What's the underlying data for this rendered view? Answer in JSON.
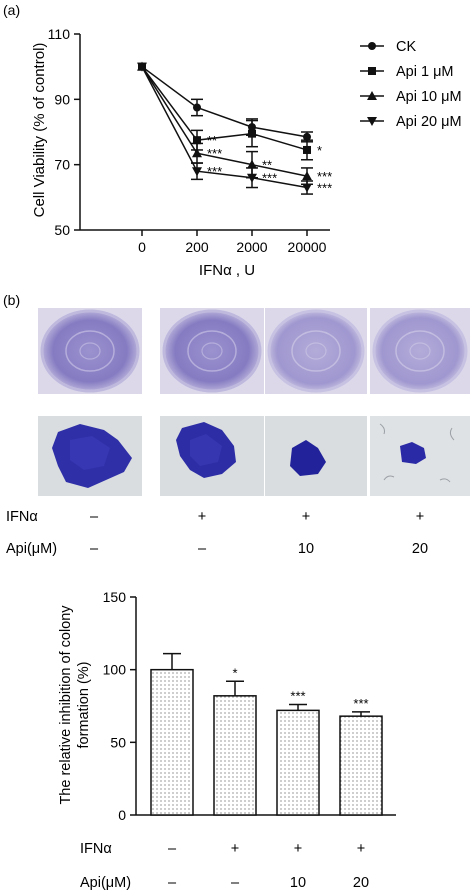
{
  "panels": {
    "a_label": "(a)",
    "b_label": "(b)"
  },
  "chart_data": [
    {
      "type": "line",
      "title": "",
      "xlabel": "IFNα , U",
      "ylabel": "Cell Viability (% of control)",
      "categories": [
        "0",
        "200",
        "2000",
        "20000"
      ],
      "ylim": [
        50,
        110
      ],
      "yticks": [
        "50",
        "70",
        "90",
        "110"
      ],
      "legend_position": "right",
      "series": [
        {
          "name": "CK",
          "marker": "circle",
          "values": [
            100,
            87.5,
            81.5,
            78.5
          ],
          "errors": [
            0,
            2.5,
            2.5,
            1.5
          ]
        },
        {
          "name": "Api 1 μM",
          "marker": "square",
          "values": [
            100,
            77.5,
            79.5,
            74.5
          ],
          "errors": [
            0,
            3,
            4,
            3
          ]
        },
        {
          "name": "Api 10 μM",
          "marker": "triangle-up",
          "values": [
            100,
            73.5,
            70,
            66.5
          ],
          "errors": [
            0,
            3,
            4,
            2.5
          ]
        },
        {
          "name": "Api 20 μM",
          "marker": "triangle-down",
          "values": [
            100,
            68,
            66,
            63
          ],
          "errors": [
            0,
            2.5,
            3,
            2
          ]
        }
      ],
      "annotations": [
        {
          "series": "Api 1 μM",
          "category": "200",
          "text": "**"
        },
        {
          "series": "Api 10 μM",
          "category": "200",
          "text": "***"
        },
        {
          "series": "Api 20 μM",
          "category": "200",
          "text": "***"
        },
        {
          "series": "Api 10 μM",
          "category": "2000",
          "text": "**"
        },
        {
          "series": "Api 20 μM",
          "category": "2000",
          "text": "***"
        },
        {
          "series": "Api 1 μM",
          "category": "20000",
          "text": "*"
        },
        {
          "series": "Api 10 μM",
          "category": "20000",
          "text": "***"
        },
        {
          "series": "Api 20 μM",
          "category": "20000",
          "text": "***"
        }
      ]
    },
    {
      "type": "bar",
      "title": "",
      "xlabel": "",
      "ylabel": "The relative inhibition of colony formation (%)",
      "ylabel_lines": [
        "The relative inhibition of colony",
        "formation (%)"
      ],
      "ylim": [
        0,
        150
      ],
      "yticks": [
        "0",
        "50",
        "100",
        "150"
      ],
      "categories": [
        "– / –",
        "+ / –",
        "+ / 10",
        "+ / 20"
      ],
      "values": [
        100,
        82,
        72,
        68
      ],
      "errors": [
        11,
        10,
        4,
        3
      ],
      "significance": [
        "",
        "*",
        "***",
        "***"
      ],
      "bar_pattern": "dotted",
      "bar_color": "#ffffff"
    }
  ],
  "treatment_table": {
    "row_labels": [
      "IFNα",
      "Api(μM)"
    ],
    "columns": [
      {
        "ifn": "–",
        "api": "–"
      },
      {
        "ifn": "+",
        "api": "–"
      },
      {
        "ifn": "+",
        "api": "10"
      },
      {
        "ifn": "+",
        "api": "20"
      }
    ]
  },
  "colors": {
    "axis": "#111111",
    "dish_stain": "#8a7fc6",
    "colony_stain": "#2c2c9e",
    "dish_background": "#d9d6e8",
    "micro_background": "#d9dde0"
  }
}
